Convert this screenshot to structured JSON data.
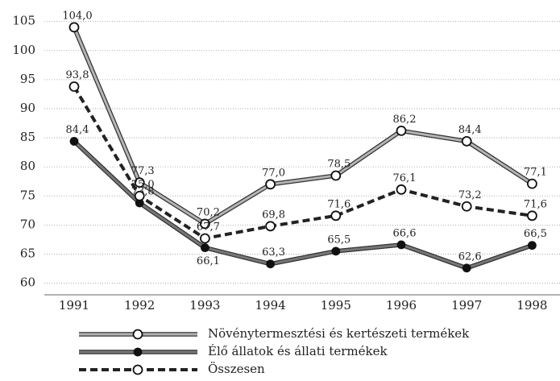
{
  "chart_data": {
    "type": "line",
    "categories": [
      "1991",
      "1992",
      "1993",
      "1994",
      "1995",
      "1996",
      "1997",
      "1998"
    ],
    "series": [
      {
        "name": "Növénytermesztési és kertészeti termékek",
        "color": "#b4b4b4",
        "line_style": "double",
        "marker": "open",
        "values": [
          104.0,
          77.3,
          70.2,
          77.0,
          78.5,
          86.2,
          84.4,
          77.1
        ],
        "value_labels": [
          "104,0",
          "77,3",
          "70,2",
          "77,0",
          "78,5",
          "86,2",
          "84,4",
          "77,1"
        ]
      },
      {
        "name": "Élő állatok és állati termékek",
        "color": "#777777",
        "line_style": "double",
        "marker": "filled",
        "values": [
          84.4,
          73.8,
          66.1,
          63.3,
          65.5,
          66.6,
          62.6,
          66.5
        ],
        "value_labels": [
          "84,4",
          "73,8",
          "66,1",
          "63,3",
          "65,5",
          "66,6",
          "62,6",
          "66,5"
        ]
      },
      {
        "name": "Összesen",
        "color": "#222222",
        "line_style": "dashed",
        "marker": "open",
        "values": [
          93.8,
          75.0,
          67.7,
          69.8,
          71.6,
          76.1,
          73.2,
          71.6
        ],
        "value_labels": [
          "93,8",
          "75,0",
          "67,7",
          "69,8",
          "71,6",
          "76,1",
          "73,2",
          "71,6"
        ]
      }
    ],
    "ylim": [
      58,
      108
    ],
    "yticks": [
      60,
      65,
      70,
      75,
      80,
      85,
      90,
      95,
      100,
      105
    ],
    "grid": true
  }
}
